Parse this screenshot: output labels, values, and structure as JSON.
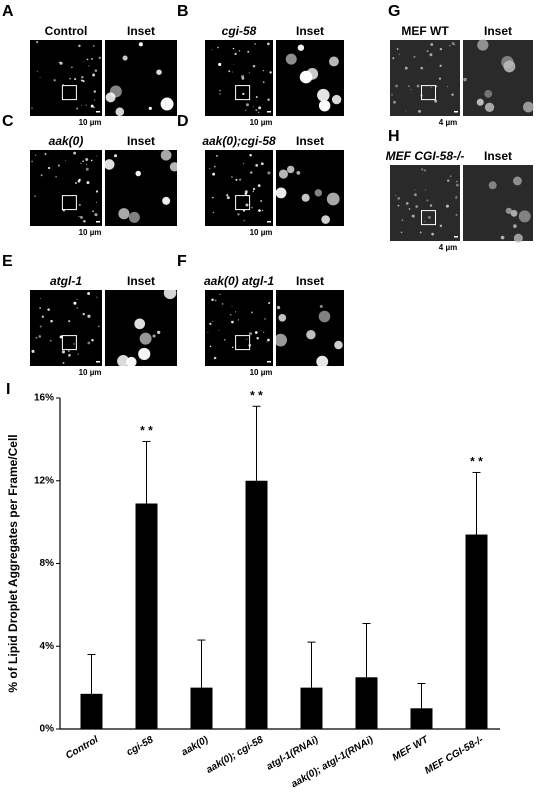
{
  "panels": [
    {
      "letter": "A",
      "title": "Control",
      "inset": "Inset",
      "scale": "10 µm"
    },
    {
      "letter": "B",
      "title": "cgi-58",
      "inset": "Inset",
      "scale": "10 µm"
    },
    {
      "letter": "C",
      "title": "aak(0)",
      "inset": "Inset",
      "scale": "10 µm"
    },
    {
      "letter": "D",
      "title": "aak(0);cgi-58",
      "inset": "Inset",
      "scale": "10 µm"
    },
    {
      "letter": "E",
      "title": "atgl-1",
      "inset": "Inset",
      "scale": "10 µm"
    },
    {
      "letter": "F",
      "title": "aak(0) atgl-1",
      "inset": "Inset",
      "scale": "10 µm"
    },
    {
      "letter": "G",
      "title": "MEF WT",
      "inset": "Inset",
      "scale": "4 µm"
    },
    {
      "letter": "H",
      "title": "MEF CGI-58-/-",
      "inset": "Inset",
      "scale": "4 µm"
    }
  ],
  "chart_data": {
    "type": "bar",
    "panel_letter": "I",
    "y_label": "% of Lipid Droplet Aggregates per Frame/Cell",
    "categories": [
      "Control",
      "cgi-58",
      "aak(0)",
      "aak(0); cgi-58",
      "atgl-1(RNAi)",
      "aak(0); atgl-1(RNAi)",
      "MEF WT",
      "MEF CGI-58-/-"
    ],
    "values": [
      1.7,
      10.9,
      2.0,
      12.0,
      2.0,
      2.5,
      1.0,
      9.4
    ],
    "errors": [
      1.9,
      3.0,
      2.3,
      3.6,
      2.2,
      2.6,
      1.2,
      3.0
    ],
    "significance": [
      null,
      "* *",
      null,
      "* *",
      null,
      null,
      null,
      "* *"
    ],
    "color": "#000000",
    "ylim": [
      0,
      16
    ],
    "yticks": [
      {
        "value": 0,
        "label": "0%"
      },
      {
        "value": 4,
        "label": "4%"
      },
      {
        "value": 8,
        "label": "8%"
      },
      {
        "value": 12,
        "label": "12%"
      },
      {
        "value": 16,
        "label": "16%"
      }
    ]
  }
}
